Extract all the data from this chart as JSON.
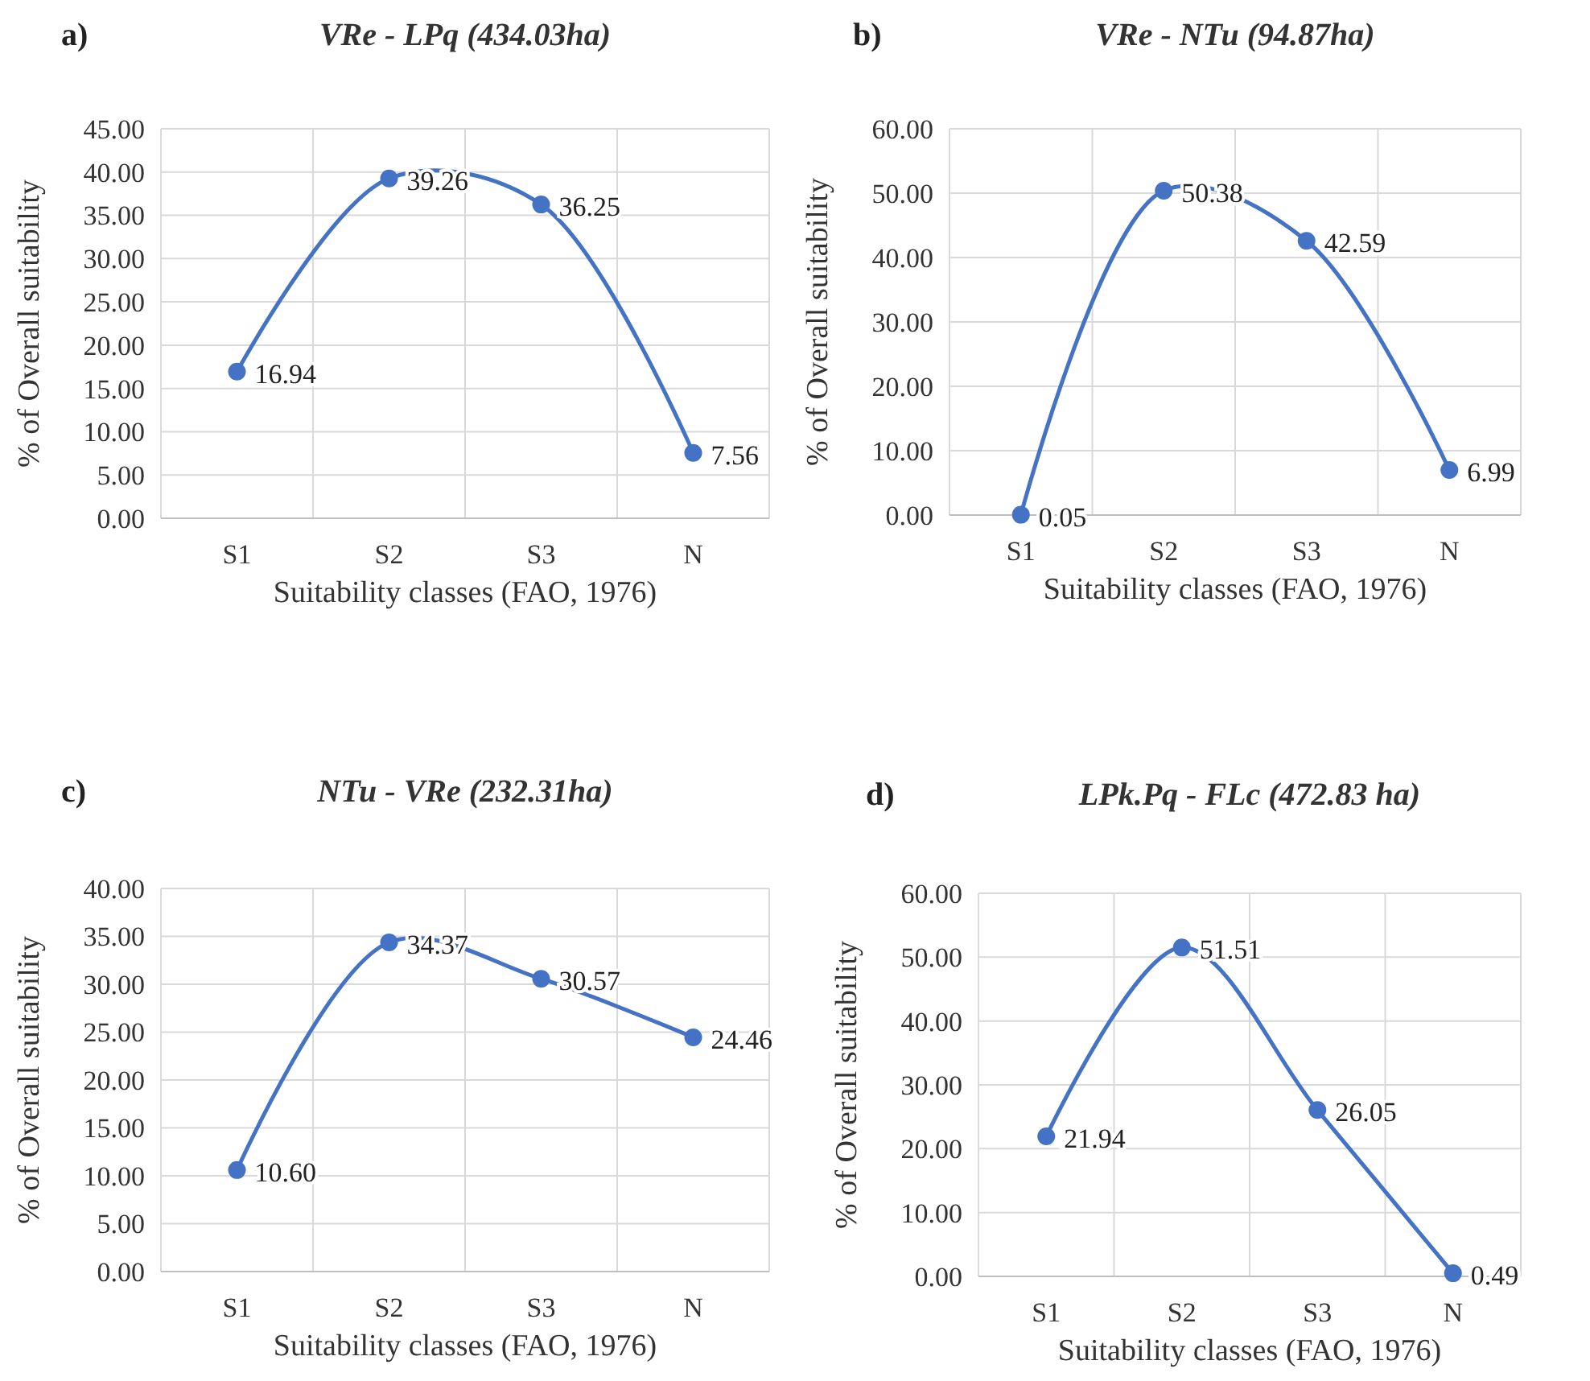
{
  "chart_data": [
    {
      "type": "line",
      "title": "VRe - LPq (434.03ha)",
      "annotations": [
        "a)"
      ],
      "xlabel": "Suitability classes (FAO, 1976)",
      "ylabel": "% of Overall suitability",
      "categories": [
        "S1",
        "S2",
        "S3",
        "N"
      ],
      "series": [
        {
          "color": "#4472c4",
          "values": [
            16.94,
            39.26,
            36.25,
            7.56
          ],
          "value_labels": [
            "16.94",
            "39.26",
            "36.25",
            "7.56"
          ]
        }
      ],
      "ylim": [
        0,
        45
      ],
      "yticks": [
        {
          "value": 0,
          "label": "0.00"
        },
        {
          "value": 5,
          "label": "5.00"
        },
        {
          "value": 10,
          "label": "10.00"
        },
        {
          "value": 15,
          "label": "15.00"
        },
        {
          "value": 20,
          "label": "20.00"
        },
        {
          "value": 25,
          "label": "25.00"
        },
        {
          "value": 30,
          "label": "30.00"
        },
        {
          "value": 35,
          "label": "35.00"
        },
        {
          "value": 40,
          "label": "40.00"
        },
        {
          "value": 45,
          "label": "45.00"
        }
      ],
      "grid": true,
      "marker": "circle"
    },
    {
      "type": "line",
      "title": "VRe - NTu (94.87ha)",
      "annotations": [
        "b)"
      ],
      "xlabel": "Suitability classes (FAO, 1976)",
      "ylabel": "% of Overall suitability",
      "categories": [
        "S1",
        "S2",
        "S3",
        "N"
      ],
      "series": [
        {
          "color": "#4472c4",
          "values": [
            0.05,
            50.38,
            42.59,
            6.99
          ],
          "value_labels": [
            "0.05",
            "50.38",
            "42.59",
            "6.99"
          ]
        }
      ],
      "ylim": [
        0,
        60
      ],
      "yticks": [
        {
          "value": 0,
          "label": "0.00"
        },
        {
          "value": 10,
          "label": "10.00"
        },
        {
          "value": 20,
          "label": "20.00"
        },
        {
          "value": 30,
          "label": "30.00"
        },
        {
          "value": 40,
          "label": "40.00"
        },
        {
          "value": 50,
          "label": "50.00"
        },
        {
          "value": 60,
          "label": "60.00"
        }
      ],
      "grid": true,
      "marker": "circle"
    },
    {
      "type": "line",
      "title": "NTu - VRe (232.31ha)",
      "annotations": [
        "c)"
      ],
      "xlabel": "Suitability classes (FAO, 1976)",
      "ylabel": "% of Overall suitability",
      "categories": [
        "S1",
        "S2",
        "S3",
        "N"
      ],
      "series": [
        {
          "color": "#4472c4",
          "values": [
            10.6,
            34.37,
            30.57,
            24.46
          ],
          "value_labels": [
            "10.60",
            "34.37",
            "30.57",
            "24.46"
          ]
        }
      ],
      "ylim": [
        0,
        40
      ],
      "yticks": [
        {
          "value": 0,
          "label": "0.00"
        },
        {
          "value": 5,
          "label": "5.00"
        },
        {
          "value": 10,
          "label": "10.00"
        },
        {
          "value": 15,
          "label": "15.00"
        },
        {
          "value": 20,
          "label": "20.00"
        },
        {
          "value": 25,
          "label": "25.00"
        },
        {
          "value": 30,
          "label": "30.00"
        },
        {
          "value": 35,
          "label": "35.00"
        },
        {
          "value": 40,
          "label": "40.00"
        }
      ],
      "grid": true,
      "marker": "circle"
    },
    {
      "type": "line",
      "title": "LPk.Pq - FLc (472.83 ha)",
      "annotations": [
        "d)"
      ],
      "xlabel": "Suitability classes (FAO, 1976)",
      "ylabel": "% of Overall suitability",
      "categories": [
        "S1",
        "S2",
        "S3",
        "N"
      ],
      "series": [
        {
          "color": "#4472c4",
          "values": [
            21.94,
            51.51,
            26.05,
            0.49
          ],
          "value_labels": [
            "21.94",
            "51.51",
            "26.05",
            "0.49"
          ]
        }
      ],
      "ylim": [
        0,
        60
      ],
      "yticks": [
        {
          "value": 0,
          "label": "0.00"
        },
        {
          "value": 10,
          "label": "10.00"
        },
        {
          "value": 20,
          "label": "20.00"
        },
        {
          "value": 30,
          "label": "30.00"
        },
        {
          "value": 40,
          "label": "40.00"
        },
        {
          "value": 50,
          "label": "50.00"
        },
        {
          "value": 60,
          "label": "60.00"
        }
      ],
      "grid": true,
      "marker": "circle"
    }
  ]
}
